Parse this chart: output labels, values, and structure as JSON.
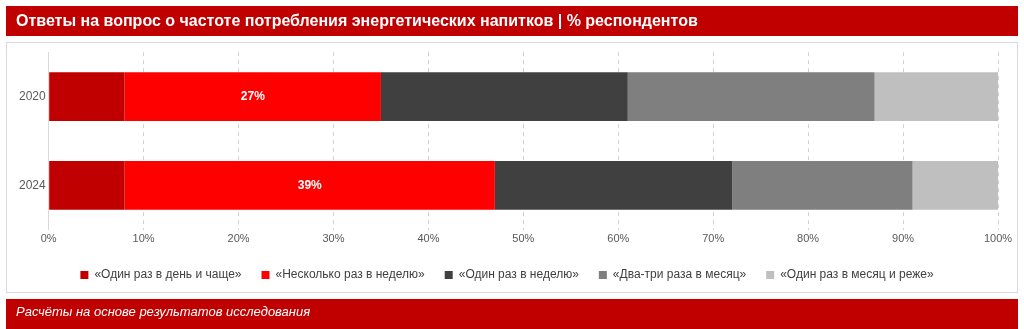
{
  "chart_data": {
    "type": "bar",
    "orientation": "horizontal",
    "stacked": true,
    "title": "Ответы на вопрос о частоте потребления энергетических напитков | % респондентов",
    "annotations": [
      "Расчёты на основе результатов исследования"
    ],
    "categories": [
      "2020",
      "2024"
    ],
    "series": [
      {
        "name": "«Один раз в день и чаще»",
        "color": "#c00000",
        "values": [
          8,
          8
        ]
      },
      {
        "name": "«Несколько раз в неделю»",
        "color": "#ff0000",
        "values": [
          27,
          39
        ],
        "value_labels": [
          "27%",
          "39%"
        ]
      },
      {
        "name": "«Один раз в неделю»",
        "color": "#404040",
        "values": [
          26,
          25
        ]
      },
      {
        "name": "«Два-три раза в месяц»",
        "color": "#7f7f7f",
        "values": [
          26,
          19
        ]
      },
      {
        "name": "«Один раз в месяц и реже»",
        "color": "#bfbfbf",
        "values": [
          13,
          9
        ]
      }
    ],
    "xlim": [
      0,
      100
    ],
    "xticks": [
      {
        "value": 0,
        "label": "0%"
      },
      {
        "value": 10,
        "label": "10%"
      },
      {
        "value": 20,
        "label": "20%"
      },
      {
        "value": 30,
        "label": "30%"
      },
      {
        "value": 40,
        "label": "40%"
      },
      {
        "value": 50,
        "label": "50%"
      },
      {
        "value": 60,
        "label": "60%"
      },
      {
        "value": 70,
        "label": "70%"
      },
      {
        "value": 80,
        "label": "80%"
      },
      {
        "value": 90,
        "label": "90%"
      },
      {
        "value": 100,
        "label": "100%"
      }
    ],
    "grid": "x",
    "legend": "bottom"
  }
}
